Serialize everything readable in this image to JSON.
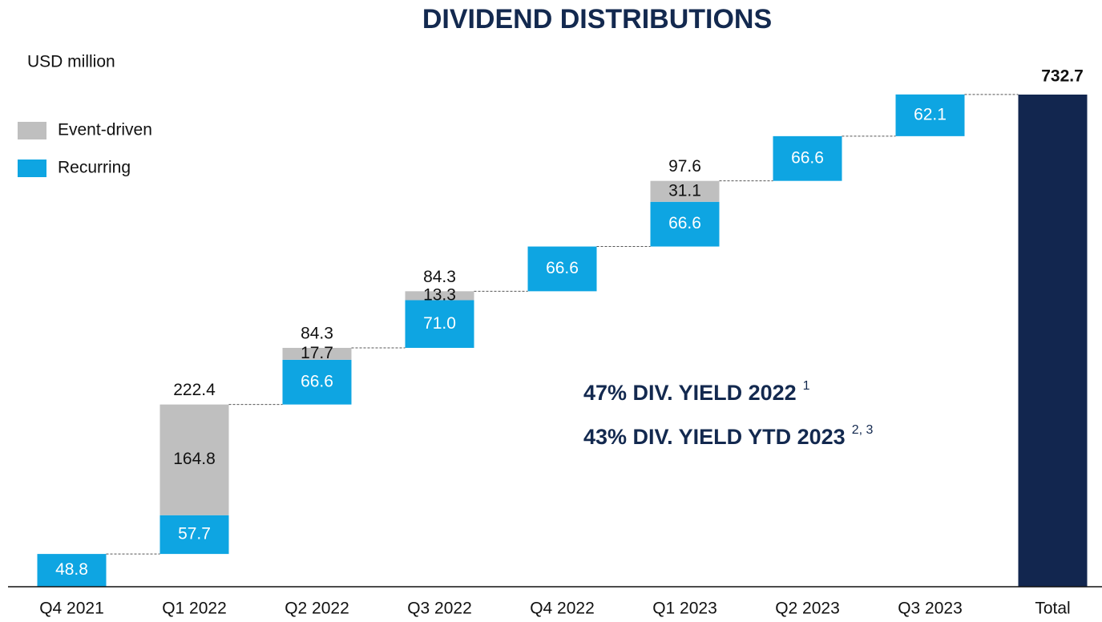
{
  "chart_data": {
    "type": "waterfall",
    "title": "DIVIDEND DISTRIBUTIONS",
    "unit_label": "USD million",
    "categories": [
      "Q4 2021",
      "Q1 2022",
      "Q2 2022",
      "Q3 2022",
      "Q4 2022",
      "Q1 2023",
      "Q2 2023",
      "Q3 2023",
      "Total"
    ],
    "series": [
      {
        "name": "Recurring",
        "color": "#0ea5e2",
        "values": [
          48.8,
          57.7,
          66.6,
          71.0,
          66.6,
          66.6,
          66.6,
          62.1,
          null
        ],
        "value_labels": [
          "48.8",
          "57.7",
          "66.6",
          "71.0",
          "66.6",
          "66.6",
          "66.6",
          "62.1",
          null
        ]
      },
      {
        "name": "Event-driven",
        "color": "#bfbfbf",
        "values": [
          null,
          164.8,
          17.7,
          13.3,
          null,
          31.1,
          null,
          null,
          null
        ]
      }
    ],
    "totals": [
      null,
      222.4,
      84.3,
      84.3,
      null,
      97.6,
      null,
      null,
      732.7
    ],
    "total_color": "#12264f",
    "annotations": [
      {
        "text": "47% DIV. YIELD 2022",
        "note": "1"
      },
      {
        "text": "43% DIV. YIELD YTD 2023",
        "note": "2, 3"
      }
    ]
  }
}
